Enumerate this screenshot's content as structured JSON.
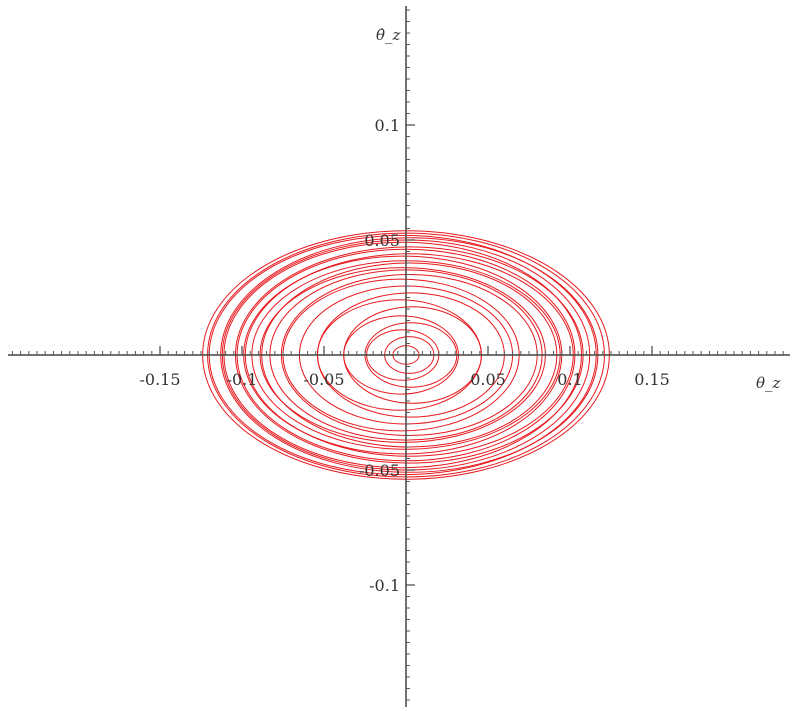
{
  "chart_data": {
    "type": "line",
    "title": "",
    "xlabel": "θ_z",
    "ylabel": "θ̇_z",
    "xlim": [
      -0.2,
      0.2
    ],
    "ylim": [
      -0.15,
      0.15
    ],
    "grid": false,
    "line_color": "#e8191e",
    "x_ticks": [
      {
        "value": -0.15,
        "label": "-0.15"
      },
      {
        "value": -0.1,
        "label": "-0.1"
      },
      {
        "value": -0.05,
        "label": "-0.05"
      },
      {
        "value": 0.05,
        "label": "0.05"
      },
      {
        "value": 0.1,
        "label": "0.1"
      },
      {
        "value": 0.15,
        "label": "0.15"
      }
    ],
    "y_ticks": [
      {
        "value": 0.1,
        "label": "0.1"
      },
      {
        "value": 0.05,
        "label": "0.05"
      },
      {
        "value": -0.05,
        "label": "-0.05"
      },
      {
        "value": -0.1,
        "label": "-0.1"
      }
    ],
    "series": [
      {
        "x_amplitudes": [
          0.008,
          0.015,
          0.022,
          0.028,
          0.035,
          0.042,
          0.05,
          0.057,
          0.065,
          0.072,
          0.078,
          0.083,
          0.087,
          0.09,
          0.094,
          0.097,
          0.1,
          0.103,
          0.106,
          0.109,
          0.112,
          0.115,
          0.118,
          0.121,
          0.124
        ],
        "y_amplitudes": [
          0.004,
          0.008,
          0.011,
          0.014,
          0.017,
          0.021,
          0.024,
          0.027,
          0.03,
          0.033,
          0.035,
          0.037,
          0.038,
          0.04,
          0.041,
          0.043,
          0.044,
          0.046,
          0.047,
          0.049,
          0.05,
          0.051,
          0.052,
          0.053,
          0.054
        ],
        "centers_x": [
          0.0,
          0.002,
          -0.002,
          0.003,
          -0.003,
          0.004,
          -0.004,
          0.003,
          0.0,
          -0.003,
          0.002,
          0.0,
          -0.002,
          0.002,
          0.0,
          -0.002,
          0.002,
          0.0,
          0.002,
          -0.002,
          0.0,
          0.002,
          -0.002,
          0.0,
          0.0
        ]
      }
    ]
  }
}
